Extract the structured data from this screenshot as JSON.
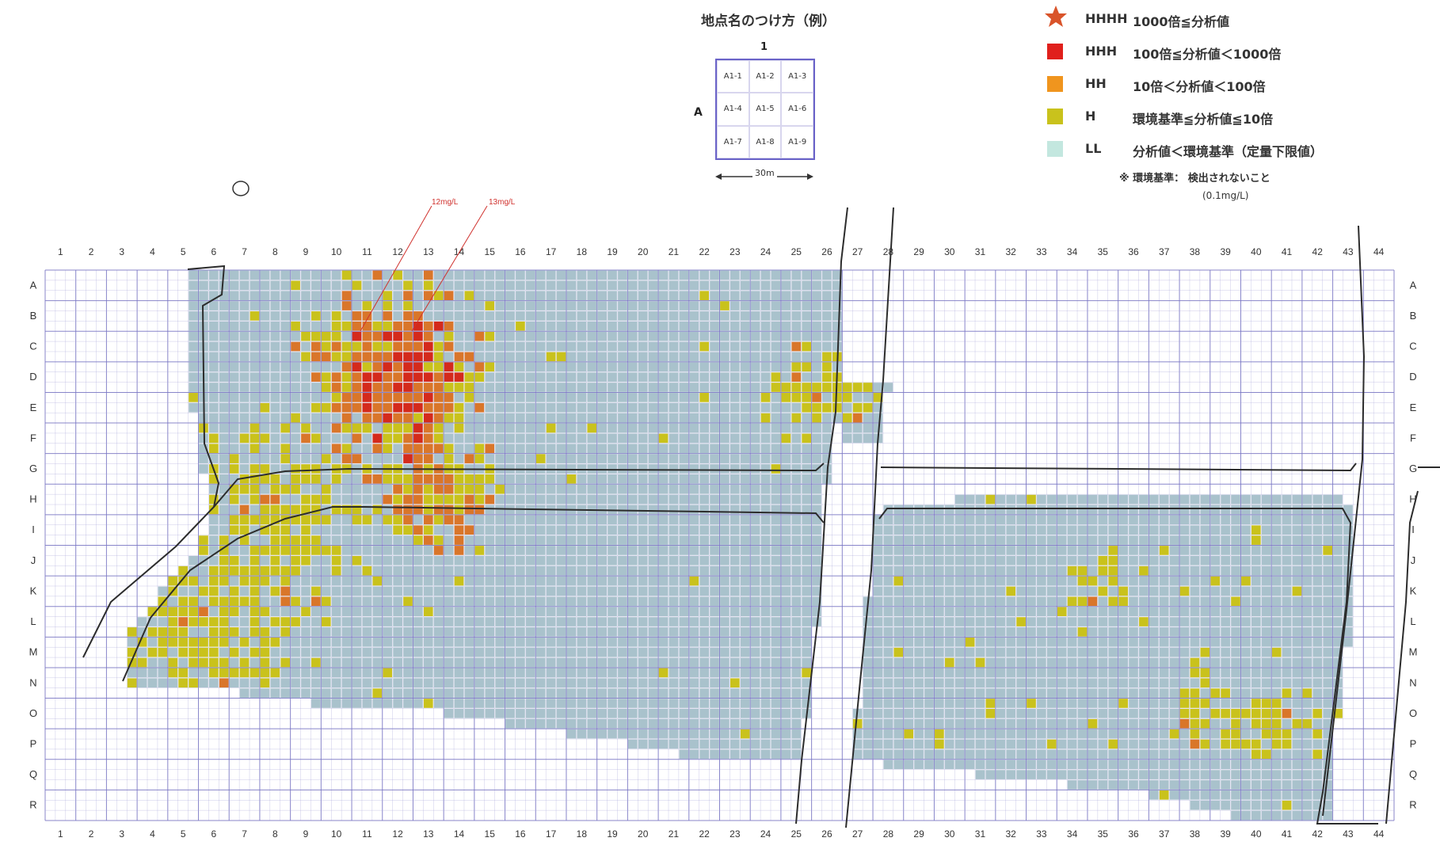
{
  "legend": {
    "items": [
      {
        "code": "HHHH",
        "desc": "1000倍≦分析値",
        "color": "#d9542a",
        "icon": "star-icon"
      },
      {
        "code": "HHH",
        "desc": "100倍≦分析値＜1000倍",
        "color": "#e0201c",
        "icon": "square-icon"
      },
      {
        "code": "HH",
        "desc": "10倍＜分析値＜100倍",
        "color": "#f0951e",
        "icon": "square-icon"
      },
      {
        "code": "H",
        "desc": "環境基準≦分析値≦10倍",
        "color": "#c9c21c",
        "icon": "square-icon"
      },
      {
        "code": "LL",
        "desc": "分析値＜環境基準（定量下限値）",
        "color": "#c3e7df",
        "icon": "square-icon"
      }
    ],
    "note": "※ 環境基準： 検出されないこと",
    "note_value": "(0.1mg/L)"
  },
  "naming": {
    "title": "地点名のつけ方（例）",
    "col": "1",
    "row": "A",
    "cells": [
      "A1-1",
      "A1-2",
      "A1-3",
      "A1-4",
      "A1-5",
      "A1-6",
      "A1-7",
      "A1-8",
      "A1-9"
    ],
    "scale": "30m"
  },
  "map": {
    "columns": [
      "1",
      "2",
      "3",
      "4",
      "5",
      "6",
      "7",
      "8",
      "9",
      "10",
      "11",
      "12",
      "13",
      "14",
      "15",
      "16",
      "17",
      "18",
      "19",
      "20",
      "21",
      "22",
      "23",
      "24",
      "25",
      "26",
      "27",
      "28",
      "29",
      "30",
      "31",
      "32",
      "33",
      "34",
      "35",
      "36",
      "37",
      "38",
      "39",
      "40",
      "41",
      "42",
      "43",
      "44"
    ],
    "rows": [
      "A",
      "B",
      "C",
      "D",
      "E",
      "F",
      "G",
      "H",
      "I",
      "J",
      "K",
      "L",
      "M",
      "N",
      "O",
      "P",
      "Q",
      "R"
    ],
    "annotations": [
      {
        "text": "12mg/L",
        "color": "#d0312d"
      },
      {
        "text": "13mg/L",
        "color": "#d0312d"
      }
    ],
    "colors": {
      "grid": "#a9a6d8",
      "grid_major": "#7b78c4",
      "ll_cell": "#a9c2cc",
      "h_cell": "#c9c21c",
      "hh_cell": "#d9762a",
      "hhh_cell": "#d42a1c",
      "road": "#2c2c2c"
    },
    "sample_levels": {
      "LL": "analysis value below environmental standard",
      "H": "analysis value at or above standard up to 10x",
      "HH": "analysis value 10x–100x",
      "HHH": "analysis value 100x–1000x"
    }
  }
}
